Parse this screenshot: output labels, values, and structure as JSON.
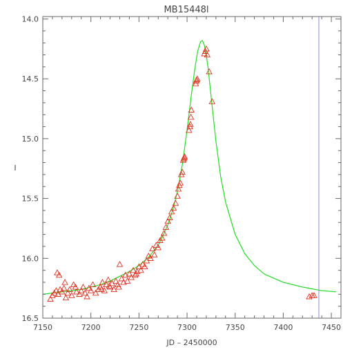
{
  "chart_data": {
    "type": "scatter",
    "title": "MB15448l",
    "xlabel": "JD – 2450000",
    "ylabel": "I",
    "xlim": [
      7150,
      7460
    ],
    "ylim": [
      16.5,
      13.98
    ],
    "y_inverted": true,
    "grid": false,
    "x_ticks": [
      7150,
      7200,
      7250,
      7300,
      7350,
      7400,
      7450
    ],
    "y_ticks": [
      14.0,
      14.5,
      15.0,
      15.5,
      16.0,
      16.5
    ],
    "y_tick_labels": [
      "14.0",
      "14.5",
      "15.0",
      "15.5",
      "16.0",
      "16.5"
    ],
    "vertical_line_x": 7437,
    "colors": {
      "model": "#22dd22",
      "observations": "#e03020",
      "vertical_line": "#8888ee"
    },
    "series": [
      {
        "kind": "model-curve",
        "x": [
          7150,
          7160,
          7170,
          7180,
          7190,
          7200,
          7210,
          7220,
          7230,
          7240,
          7250,
          7260,
          7270,
          7275,
          7280,
          7285,
          7290,
          7295,
          7300,
          7305,
          7308,
          7311,
          7314,
          7316,
          7318,
          7320,
          7322,
          7325,
          7330,
          7335,
          7340,
          7350,
          7360,
          7370,
          7380,
          7400,
          7420,
          7440,
          7455
        ],
        "y": [
          16.3,
          16.29,
          16.28,
          16.27,
          16.26,
          16.24,
          16.22,
          16.19,
          16.15,
          16.11,
          16.06,
          15.99,
          15.89,
          15.81,
          15.72,
          15.6,
          15.44,
          15.22,
          14.93,
          14.6,
          14.42,
          14.27,
          14.19,
          14.18,
          14.22,
          14.3,
          14.42,
          14.65,
          15.02,
          15.32,
          15.53,
          15.8,
          15.96,
          16.06,
          16.13,
          16.2,
          16.24,
          16.27,
          16.28
        ]
      },
      {
        "kind": "observations",
        "marker": "triangle",
        "x": [
          7158,
          7160,
          7162,
          7164,
          7165,
          7166,
          7168,
          7170,
          7172,
          7174,
          7176,
          7178,
          7180,
          7182,
          7185,
          7188,
          7190,
          7192,
          7194,
          7196,
          7198,
          7200,
          7202,
          7205,
          7208,
          7210,
          7212,
          7214,
          7216,
          7218,
          7220,
          7222,
          7224,
          7226,
          7228,
          7230,
          7232,
          7234,
          7236,
          7238,
          7240,
          7242,
          7244,
          7246,
          7248,
          7250,
          7252,
          7254,
          7256,
          7258,
          7260,
          7262,
          7264,
          7266,
          7268,
          7270,
          7272,
          7274,
          7276,
          7278,
          7280,
          7282,
          7284,
          7286,
          7288,
          7290,
          7291,
          7292,
          7293,
          7294,
          7295,
          7296,
          7296.5,
          7297,
          7297.5,
          7302,
          7303,
          7303.5,
          7304,
          7304.5,
          7309,
          7309.5,
          7310,
          7310.5,
          7318,
          7319,
          7320,
          7321,
          7323,
          7326,
          7427,
          7430,
          7432,
          7167,
          7173,
          7184,
          7211,
          7219,
          7229,
          7247
        ],
        "y": [
          16.34,
          16.31,
          16.29,
          16.27,
          16.12,
          16.3,
          16.26,
          16.28,
          16.25,
          16.33,
          16.29,
          16.26,
          16.31,
          16.22,
          16.28,
          16.3,
          16.27,
          16.24,
          16.29,
          16.32,
          16.25,
          16.27,
          16.22,
          16.29,
          16.26,
          16.24,
          16.2,
          16.27,
          16.22,
          16.18,
          16.24,
          16.21,
          16.26,
          16.19,
          16.22,
          16.05,
          16.17,
          16.2,
          16.14,
          16.19,
          16.13,
          16.16,
          16.1,
          16.14,
          16.11,
          16.07,
          16.1,
          16.05,
          16.07,
          16.02,
          15.98,
          16.0,
          15.92,
          15.97,
          15.89,
          15.91,
          15.85,
          15.83,
          15.79,
          15.74,
          15.69,
          15.66,
          15.61,
          15.58,
          15.54,
          15.48,
          15.42,
          15.39,
          15.37,
          15.3,
          15.28,
          15.18,
          15.17,
          15.16,
          15.15,
          14.93,
          14.9,
          14.88,
          14.82,
          14.76,
          14.54,
          14.52,
          14.51,
          14.5,
          14.29,
          14.27,
          14.25,
          14.3,
          14.44,
          14.69,
          16.32,
          16.31,
          16.31,
          16.14,
          16.2,
          16.24,
          16.26,
          16.23,
          16.24,
          16.13
        ]
      }
    ]
  }
}
